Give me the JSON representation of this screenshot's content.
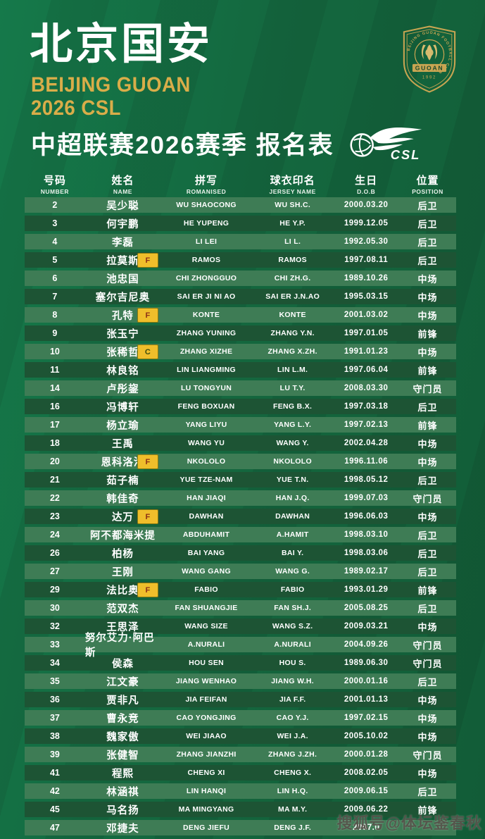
{
  "header": {
    "club_cn": "北京国安",
    "club_en_lines": "BEIJING GUOAN\n2026 CSL",
    "subtitle": "中超联赛2026赛季 报名表",
    "crest": {
      "ring_text": "BEIJING GUOAN FOOTBALL CLUB",
      "banner": "GUOAN",
      "year": "1992"
    },
    "csl_label": "CSL"
  },
  "table": {
    "columns": [
      {
        "cn": "号码",
        "en": "NUMBER"
      },
      {
        "cn": "姓名",
        "en": "NAME"
      },
      {
        "cn": "拼写",
        "en": "ROMANISED"
      },
      {
        "cn": "球衣印名",
        "en": "JERSEY NAME"
      },
      {
        "cn": "生日",
        "en": "D.O.B"
      },
      {
        "cn": "位置",
        "en": "POSITION"
      }
    ],
    "rows": [
      {
        "number": "2",
        "name": "吴少聪",
        "badge": "",
        "romanised": "WU SHAOCONG",
        "jersey": "WU SH.C.",
        "dob": "2000.03.20",
        "position": "后卫"
      },
      {
        "number": "3",
        "name": "何宇鹏",
        "badge": "",
        "romanised": "HE YUPENG",
        "jersey": "HE Y.P.",
        "dob": "1999.12.05",
        "position": "后卫"
      },
      {
        "number": "4",
        "name": "李磊",
        "badge": "",
        "romanised": "LI LEI",
        "jersey": "LI L.",
        "dob": "1992.05.30",
        "position": "后卫"
      },
      {
        "number": "5",
        "name": "拉莫斯",
        "badge": "F",
        "romanised": "RAMOS",
        "jersey": "RAMOS",
        "dob": "1997.08.11",
        "position": "后卫"
      },
      {
        "number": "6",
        "name": "池忠国",
        "badge": "",
        "romanised": "CHI ZHONGGUO",
        "jersey": "CHI ZH.G.",
        "dob": "1989.10.26",
        "position": "中场"
      },
      {
        "number": "7",
        "name": "塞尔吉尼奥",
        "badge": "",
        "romanised": "SAI ER JI NI AO",
        "jersey": "SAI ER J.N.AO",
        "dob": "1995.03.15",
        "position": "中场"
      },
      {
        "number": "8",
        "name": "孔特",
        "badge": "F",
        "romanised": "KONTE",
        "jersey": "KONTE",
        "dob": "2001.03.02",
        "position": "中场"
      },
      {
        "number": "9",
        "name": "张玉宁",
        "badge": "",
        "romanised": "ZHANG YUNING",
        "jersey": "ZHANG Y.N.",
        "dob": "1997.01.05",
        "position": "前锋"
      },
      {
        "number": "10",
        "name": "张稀哲",
        "badge": "C",
        "romanised": "ZHANG XIZHE",
        "jersey": "ZHANG X.ZH.",
        "dob": "1991.01.23",
        "position": "中场"
      },
      {
        "number": "11",
        "name": "林良铭",
        "badge": "",
        "romanised": "LIN LIANGMING",
        "jersey": "LIN L.M.",
        "dob": "1997.06.04",
        "position": "前锋"
      },
      {
        "number": "14",
        "name": "卢彤鋆",
        "badge": "",
        "romanised": "LU TONGYUN",
        "jersey": "LU T.Y.",
        "dob": "2008.03.30",
        "position": "守门员"
      },
      {
        "number": "16",
        "name": "冯博轩",
        "badge": "",
        "romanised": "FENG BOXUAN",
        "jersey": "FENG B.X.",
        "dob": "1997.03.18",
        "position": "后卫"
      },
      {
        "number": "17",
        "name": "杨立瑜",
        "badge": "",
        "romanised": "YANG LIYU",
        "jersey": "YANG L.Y.",
        "dob": "1997.02.13",
        "position": "前锋"
      },
      {
        "number": "18",
        "name": "王禹",
        "badge": "",
        "romanised": "WANG YU",
        "jersey": "WANG Y.",
        "dob": "2002.04.28",
        "position": "中场"
      },
      {
        "number": "20",
        "name": "恩科洛洛",
        "badge": "F",
        "romanised": "NKOLOLO",
        "jersey": "NKOLOLO",
        "dob": "1996.11.06",
        "position": "中场"
      },
      {
        "number": "21",
        "name": "茹子楠",
        "badge": "",
        "romanised": "YUE TZE-NAM",
        "jersey": "YUE T.N.",
        "dob": "1998.05.12",
        "position": "后卫"
      },
      {
        "number": "22",
        "name": "韩佳奇",
        "badge": "",
        "romanised": "HAN JIAQI",
        "jersey": "HAN J.Q.",
        "dob": "1999.07.03",
        "position": "守门员"
      },
      {
        "number": "23",
        "name": "达万",
        "badge": "F",
        "romanised": "DAWHAN",
        "jersey": "DAWHAN",
        "dob": "1996.06.03",
        "position": "中场"
      },
      {
        "number": "24",
        "name": "阿不都海米提",
        "badge": "",
        "romanised": "ABDUHAMIT",
        "jersey": "A.HAMIT",
        "dob": "1998.03.10",
        "position": "后卫"
      },
      {
        "number": "26",
        "name": "柏杨",
        "badge": "",
        "romanised": "BAI YANG",
        "jersey": "BAI Y.",
        "dob": "1998.03.06",
        "position": "后卫"
      },
      {
        "number": "27",
        "name": "王刚",
        "badge": "",
        "romanised": "WANG GANG",
        "jersey": "WANG G.",
        "dob": "1989.02.17",
        "position": "后卫"
      },
      {
        "number": "29",
        "name": "法比奥",
        "badge": "F",
        "romanised": "FABIO",
        "jersey": "FABIO",
        "dob": "1993.01.29",
        "position": "前锋"
      },
      {
        "number": "30",
        "name": "范双杰",
        "badge": "",
        "romanised": "FAN SHUANGJIE",
        "jersey": "FAN SH.J.",
        "dob": "2005.08.25",
        "position": "后卫"
      },
      {
        "number": "32",
        "name": "王思泽",
        "badge": "",
        "romanised": "WANG SIZE",
        "jersey": "WANG S.Z.",
        "dob": "2009.03.21",
        "position": "中场"
      },
      {
        "number": "33",
        "name": "努尔艾力·阿巴斯",
        "badge": "",
        "romanised": "A.NURALI",
        "jersey": "A.NURALI",
        "dob": "2004.09.26",
        "position": "守门员"
      },
      {
        "number": "34",
        "name": "侯森",
        "badge": "",
        "romanised": "HOU SEN",
        "jersey": "HOU S.",
        "dob": "1989.06.30",
        "position": "守门员"
      },
      {
        "number": "35",
        "name": "江文豪",
        "badge": "",
        "romanised": "JIANG WENHAO",
        "jersey": "JIANG W.H.",
        "dob": "2000.01.16",
        "position": "后卫"
      },
      {
        "number": "36",
        "name": "贾非凡",
        "badge": "",
        "romanised": "JIA FEIFAN",
        "jersey": "JIA F.F.",
        "dob": "2001.01.13",
        "position": "中场"
      },
      {
        "number": "37",
        "name": "曹永竞",
        "badge": "",
        "romanised": "CAO YONGJING",
        "jersey": "CAO Y.J.",
        "dob": "1997.02.15",
        "position": "中场"
      },
      {
        "number": "38",
        "name": "魏家傲",
        "badge": "",
        "romanised": "WEI JIAAO",
        "jersey": "WEI J.A.",
        "dob": "2005.10.02",
        "position": "中场"
      },
      {
        "number": "39",
        "name": "张健智",
        "badge": "",
        "romanised": "ZHANG JIANZHI",
        "jersey": "ZHANG J.ZH.",
        "dob": "2000.01.28",
        "position": "守门员"
      },
      {
        "number": "41",
        "name": "程熙",
        "badge": "",
        "romanised": "CHENG XI",
        "jersey": "CHENG X.",
        "dob": "2008.02.05",
        "position": "中场"
      },
      {
        "number": "42",
        "name": "林涵祺",
        "badge": "",
        "romanised": "LIN HANQI",
        "jersey": "LIN H.Q.",
        "dob": "2009.06.15",
        "position": "后卫"
      },
      {
        "number": "45",
        "name": "马名扬",
        "badge": "",
        "romanised": "MA MINGYANG",
        "jersey": "MA M.Y.",
        "dob": "2009.06.22",
        "position": "前锋"
      },
      {
        "number": "47",
        "name": "邓捷夫",
        "badge": "",
        "romanised": "DENG JIEFU",
        "jersey": "DENG J.F.",
        "dob": "2007.0",
        "position": ""
      }
    ]
  },
  "watermark": "搜狐号@体坛鉴春秋",
  "colors": {
    "background": "#14683f",
    "row_light": "#3e7c55",
    "row_dark": "#1d5434",
    "gold_accent": "#d9ad49",
    "badge_yellow": "#efbe2b",
    "badge_f_letter": "#8c2f16",
    "badge_c_letter": "#3f4f0e",
    "text": "#ffffff"
  }
}
